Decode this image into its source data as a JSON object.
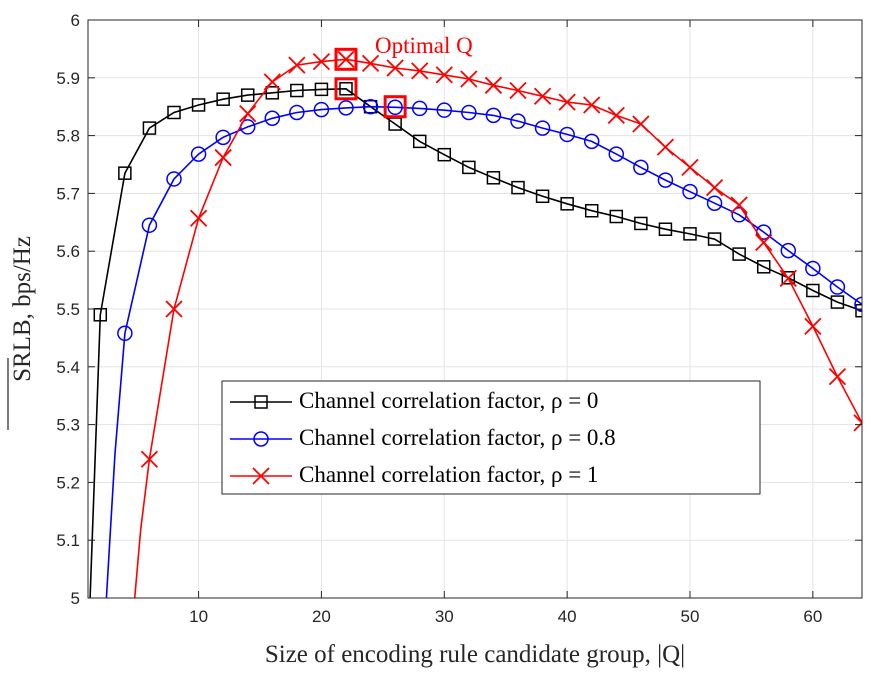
{
  "chart_data": {
    "type": "line",
    "title": "",
    "xlabel": "Size of encoding rule candidate group, |Q|",
    "ylabel": "SRLB, bps/Hz",
    "xlim": [
      1,
      64
    ],
    "ylim": [
      5,
      6
    ],
    "xticks": [
      10,
      20,
      30,
      40,
      50,
      60
    ],
    "yticks": [
      5,
      5.1,
      5.2,
      5.3,
      5.4,
      5.5,
      5.6,
      5.7,
      5.8,
      5.9,
      6
    ],
    "ytick_labels": [
      "5",
      "5.1",
      "5.2",
      "5.3",
      "5.4",
      "5.5",
      "5.6",
      "5.7",
      "5.8",
      "5.9",
      "6"
    ],
    "grid": true,
    "legend_position": "center-right",
    "series": [
      {
        "name": "Channel correlation factor, ρ = 0",
        "color": "#000000",
        "marker": "square",
        "x": [
          1,
          2,
          4,
          6,
          8,
          10,
          12,
          14,
          16,
          18,
          20,
          22,
          24,
          26,
          28,
          30,
          32,
          34,
          36,
          38,
          40,
          42,
          44,
          46,
          48,
          50,
          52,
          54,
          56,
          58,
          60,
          62,
          64
        ],
        "y": [
          4.9,
          5.49,
          5.735,
          5.813,
          5.84,
          5.853,
          5.863,
          5.87,
          5.874,
          5.878,
          5.88,
          5.881,
          5.85,
          5.82,
          5.79,
          5.767,
          5.745,
          5.727,
          5.71,
          5.695,
          5.682,
          5.67,
          5.66,
          5.648,
          5.638,
          5.63,
          5.621,
          5.595,
          5.573,
          5.554,
          5.532,
          5.512,
          5.497
        ],
        "marker_from": 1
      },
      {
        "name": "Channel correlation factor, ρ = 0.8",
        "color": "#0000ff",
        "marker": "circle",
        "x": [
          2.5,
          3.2,
          4,
          6,
          8,
          10,
          12,
          14,
          16,
          18,
          20,
          22,
          24,
          26,
          28,
          30,
          32,
          34,
          36,
          38,
          40,
          42,
          44,
          46,
          48,
          50,
          52,
          54,
          56,
          58,
          60,
          62,
          64
        ],
        "y": [
          5.0,
          5.25,
          5.458,
          5.645,
          5.725,
          5.768,
          5.797,
          5.815,
          5.83,
          5.84,
          5.845,
          5.848,
          5.85,
          5.849,
          5.847,
          5.844,
          5.84,
          5.835,
          5.825,
          5.813,
          5.802,
          5.79,
          5.768,
          5.745,
          5.723,
          5.703,
          5.683,
          5.663,
          5.633,
          5.601,
          5.57,
          5.538,
          5.508
        ],
        "marker_from": 2
      },
      {
        "name": "Channel correlation factor, ρ = 1",
        "color": "#ff0000",
        "marker": "x",
        "x": [
          4.8,
          5.3,
          6,
          8,
          10,
          12,
          14,
          16,
          18,
          20,
          22,
          24,
          26,
          28,
          30,
          32,
          34,
          36,
          38,
          40,
          42,
          44,
          46,
          48,
          50,
          52,
          54,
          56,
          58,
          60,
          62,
          64
        ],
        "y": [
          5.0,
          5.12,
          5.24,
          5.5,
          5.657,
          5.762,
          5.838,
          5.893,
          5.922,
          5.928,
          5.932,
          5.925,
          5.917,
          5.912,
          5.905,
          5.898,
          5.887,
          5.878,
          5.868,
          5.858,
          5.853,
          5.835,
          5.82,
          5.78,
          5.745,
          5.71,
          5.68,
          5.615,
          5.553,
          5.47,
          5.383,
          5.303
        ],
        "marker_from": 2
      }
    ],
    "annotations": {
      "label": "Optimal Q",
      "color": "#ff0000",
      "optimal_points": [
        {
          "x": 22,
          "y": 5.932
        },
        {
          "x": 22,
          "y": 5.881
        },
        {
          "x": 26,
          "y": 5.85
        }
      ]
    }
  }
}
